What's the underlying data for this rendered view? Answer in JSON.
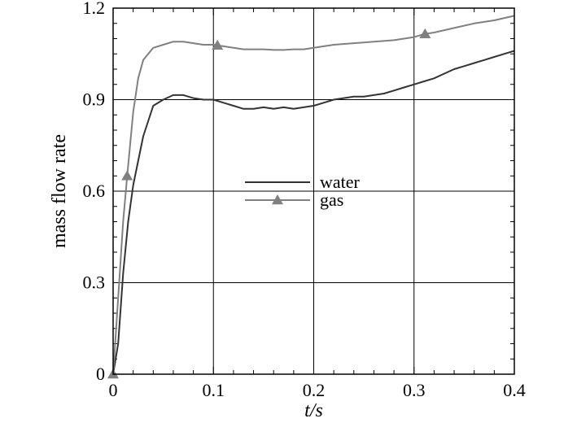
{
  "chart_data": {
    "type": "line",
    "xlabel": "t/s",
    "ylabel": "mass flow rate",
    "xlim": [
      0,
      0.4
    ],
    "ylim": [
      0,
      1.2
    ],
    "xticks": [
      "0",
      "0.1",
      "0.2",
      "0.3",
      "0.4"
    ],
    "yticks": [
      "0",
      "0.3",
      "0.6",
      "0.9",
      "1.2"
    ],
    "grid": true,
    "legend_position": "center",
    "series": [
      {
        "name": "water",
        "color": "#333333",
        "marker": "none",
        "x": [
          0,
          0.005,
          0.01,
          0.015,
          0.02,
          0.03,
          0.04,
          0.05,
          0.06,
          0.07,
          0.08,
          0.09,
          0.1,
          0.11,
          0.12,
          0.13,
          0.14,
          0.15,
          0.16,
          0.17,
          0.18,
          0.19,
          0.2,
          0.21,
          0.22,
          0.23,
          0.24,
          0.25,
          0.26,
          0.27,
          0.28,
          0.29,
          0.3,
          0.31,
          0.32,
          0.33,
          0.34,
          0.35,
          0.36,
          0.37,
          0.38,
          0.39,
          0.4
        ],
        "y": [
          0,
          0.1,
          0.33,
          0.5,
          0.62,
          0.78,
          0.88,
          0.9,
          0.915,
          0.915,
          0.905,
          0.9,
          0.9,
          0.89,
          0.88,
          0.87,
          0.87,
          0.875,
          0.87,
          0.875,
          0.87,
          0.875,
          0.88,
          0.89,
          0.9,
          0.905,
          0.91,
          0.91,
          0.915,
          0.92,
          0.93,
          0.94,
          0.95,
          0.96,
          0.97,
          0.985,
          1.0,
          1.01,
          1.02,
          1.03,
          1.04,
          1.05,
          1.06
        ]
      },
      {
        "name": "gas",
        "color": "#808080",
        "marker": "triangle",
        "marker_x": [
          0,
          0.014,
          0.104,
          0.311
        ],
        "x": [
          0,
          0.005,
          0.01,
          0.014,
          0.02,
          0.025,
          0.03,
          0.04,
          0.05,
          0.06,
          0.07,
          0.08,
          0.09,
          0.1,
          0.11,
          0.12,
          0.13,
          0.14,
          0.15,
          0.16,
          0.17,
          0.18,
          0.19,
          0.2,
          0.22,
          0.24,
          0.26,
          0.28,
          0.3,
          0.31,
          0.32,
          0.34,
          0.36,
          0.38,
          0.4
        ],
        "y": [
          0,
          0.25,
          0.5,
          0.65,
          0.86,
          0.97,
          1.03,
          1.07,
          1.08,
          1.09,
          1.09,
          1.085,
          1.08,
          1.08,
          1.075,
          1.07,
          1.065,
          1.065,
          1.065,
          1.063,
          1.063,
          1.065,
          1.065,
          1.07,
          1.08,
          1.085,
          1.09,
          1.095,
          1.105,
          1.115,
          1.12,
          1.135,
          1.15,
          1.16,
          1.175
        ]
      }
    ]
  }
}
